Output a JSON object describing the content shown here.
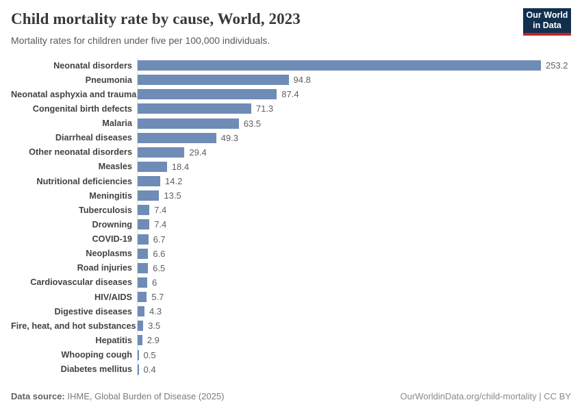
{
  "header": {
    "title": "Child mortality rate by cause, World, 2023",
    "subtitle": "Mortality rates for children under five per 100,000 individuals.",
    "logo": {
      "line1": "Our World",
      "line2": "in Data",
      "bg_color": "#12304e",
      "accent_color": "#c0252d"
    }
  },
  "chart_data": {
    "type": "bar",
    "orientation": "horizontal",
    "title": "Child mortality rate by cause, World, 2023",
    "subtitle": "Mortality rates for children under five per 100,000 individuals.",
    "categories": [
      "Neonatal disorders",
      "Pneumonia",
      "Neonatal asphyxia and trauma",
      "Congenital birth defects",
      "Malaria",
      "Diarrheal diseases",
      "Other neonatal disorders",
      "Measles",
      "Nutritional deficiencies",
      "Meningitis",
      "Tuberculosis",
      "Drowning",
      "COVID-19",
      "Neoplasms",
      "Road injuries",
      "Cardiovascular diseases",
      "HIV/AIDS",
      "Digestive diseases",
      "Fire, heat, and hot substances",
      "Hepatitis",
      "Whooping cough",
      "Diabetes mellitus"
    ],
    "values": [
      253.2,
      94.8,
      87.4,
      71.3,
      63.5,
      49.3,
      29.4,
      18.4,
      14.2,
      13.5,
      7.4,
      7.4,
      6.7,
      6.6,
      6.5,
      6,
      5.7,
      4.3,
      3.5,
      2.9,
      0.5,
      0.4
    ],
    "xlim": [
      0,
      253.2
    ],
    "bar_color": "#6e8cb5",
    "axis_line_color": "#dcdcdc",
    "grid": false,
    "value_labels": true,
    "legend": "none"
  },
  "footer": {
    "source_label": "Data source:",
    "source_value": "IHME, Global Burden of Disease (2025)",
    "url": "OurWorldinData.org/child-mortality",
    "separator": " | ",
    "license": "CC BY"
  }
}
